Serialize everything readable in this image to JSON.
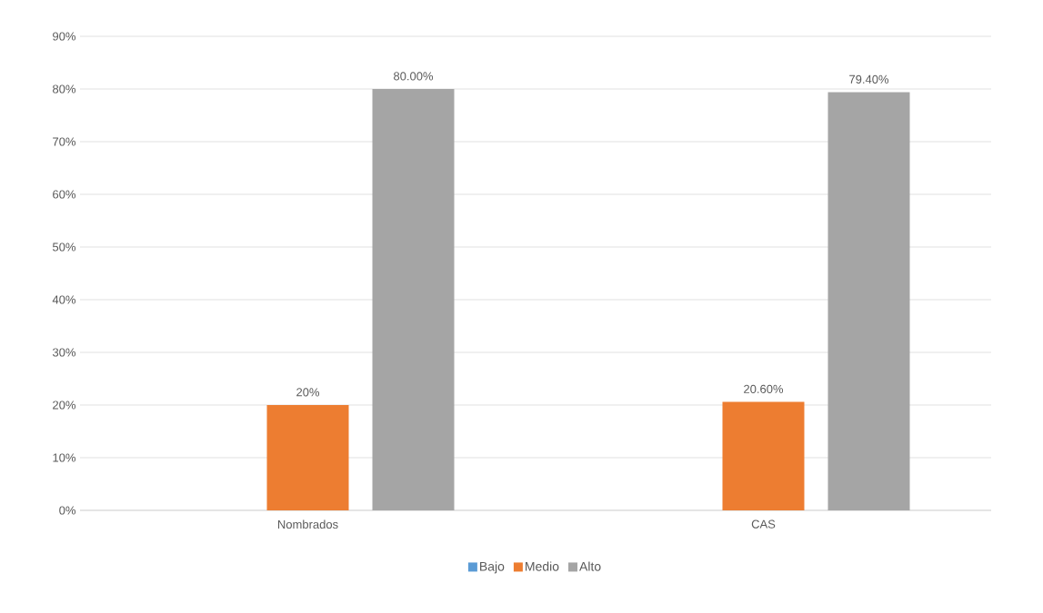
{
  "chart_data": {
    "type": "bar",
    "categories": [
      "Nombrados",
      "CAS"
    ],
    "series": [
      {
        "name": "Bajo",
        "color": "#5b9bd5",
        "values": [
          0,
          0
        ],
        "value_labels": [
          null,
          null
        ]
      },
      {
        "name": "Medio",
        "color": "#ed7d31",
        "values": [
          20,
          20.6
        ],
        "value_labels": [
          "20%",
          "20.60%"
        ]
      },
      {
        "name": "Alto",
        "color": "#a5a5a5",
        "values": [
          80,
          79.4
        ],
        "value_labels": [
          "80.00%",
          "79.40%"
        ]
      }
    ],
    "ylim": [
      0,
      90
    ],
    "yticks": [
      {
        "value": 0,
        "label": "0%"
      },
      {
        "value": 10,
        "label": "10%"
      },
      {
        "value": 20,
        "label": "20%"
      },
      {
        "value": 30,
        "label": "30%"
      },
      {
        "value": 40,
        "label": "40%"
      },
      {
        "value": 50,
        "label": "50%"
      },
      {
        "value": 60,
        "label": "60%"
      },
      {
        "value": 70,
        "label": "70%"
      },
      {
        "value": 80,
        "label": "80%"
      },
      {
        "value": 90,
        "label": "90%"
      }
    ],
    "grid": "y",
    "legend": "bottom"
  }
}
